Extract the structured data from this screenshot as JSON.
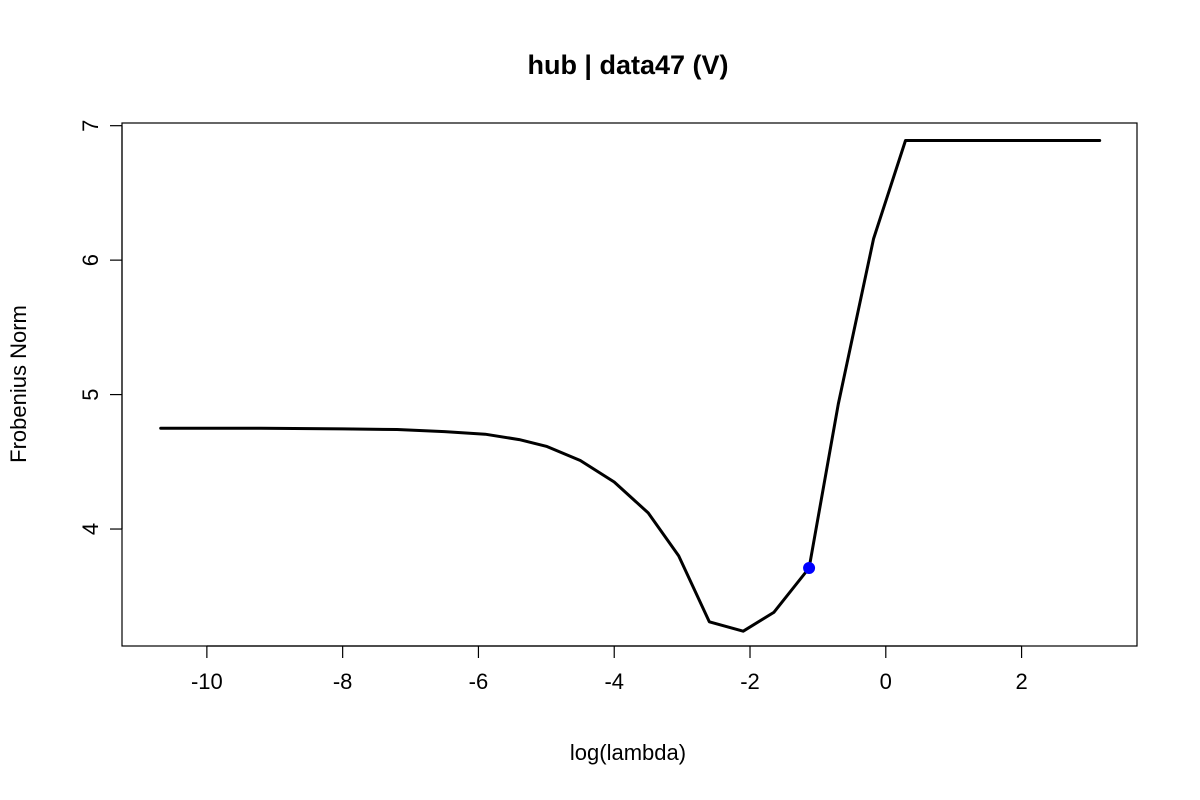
{
  "chart_data": {
    "type": "line",
    "title": "hub | data47 (V)",
    "xlabel": "log(lambda)",
    "ylabel": "Frobenius Norm",
    "xlim": [
      -11.25,
      3.7
    ],
    "ylim": [
      3.13,
      7.02
    ],
    "x_ticks": [
      -10,
      -8,
      -6,
      -4,
      -2,
      0,
      2
    ],
    "x_tick_labels": [
      "-10",
      "-8",
      "-6",
      "-4",
      "-2",
      "0",
      "2"
    ],
    "y_ticks": [
      4,
      5,
      6,
      7
    ],
    "y_tick_labels": [
      "4",
      "5",
      "6",
      "7"
    ],
    "grid": false,
    "series": [
      {
        "color": "#000000",
        "x": [
          -10.68,
          -9.2,
          -8.0,
          -7.2,
          -6.5,
          -5.9,
          -5.4,
          -5.0,
          -4.5,
          -4.0,
          -3.5,
          -3.05,
          -2.6,
          -2.1,
          -1.65,
          -1.13,
          -0.7,
          -0.18,
          0.29,
          1.0,
          2.0,
          3.15
        ],
        "y": [
          4.75,
          4.75,
          4.745,
          4.74,
          4.725,
          4.705,
          4.665,
          4.615,
          4.51,
          4.35,
          4.12,
          3.8,
          3.31,
          3.24,
          3.38,
          3.71,
          4.93,
          6.16,
          6.89,
          6.89,
          6.89,
          6.89
        ]
      }
    ],
    "highlight_point": {
      "x": -1.13,
      "y": 3.71,
      "color": "#0000ff"
    }
  }
}
